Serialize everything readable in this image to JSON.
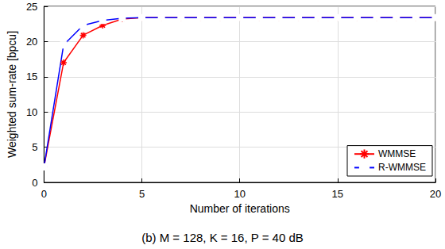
{
  "chart_data": {
    "type": "line",
    "title": "(b) M = 128, K = 16, P = 40 dB",
    "x_label": "Number of iterations",
    "y_label": "Weighted sum-rate [bpcu]",
    "x": [
      0,
      1,
      2,
      3,
      4,
      5,
      6,
      7,
      8,
      9,
      10,
      11,
      12,
      13,
      14,
      15,
      16,
      17,
      18,
      19,
      20
    ],
    "series": [
      {
        "name": "WMMSE",
        "color": "#ff0000",
        "marker": "asterisk",
        "line_style": "solid",
        "values": [
          2.2,
          17.0,
          20.9,
          22.3,
          23.2,
          23.4,
          23.4,
          23.4,
          23.4,
          23.4,
          23.4,
          23.4,
          23.4,
          23.4,
          23.4,
          23.4,
          23.4,
          23.4,
          23.4,
          23.4,
          23.4
        ]
      },
      {
        "name": "R-WMMSE",
        "color": "#0000ff",
        "marker": "square",
        "line_style": "solid",
        "values": [
          2.2,
          19.5,
          22.3,
          23.0,
          23.3,
          23.4,
          23.4,
          23.4,
          23.4,
          23.4,
          23.4,
          23.4,
          23.4,
          23.4,
          23.4,
          23.4,
          23.4,
          23.4,
          23.4,
          23.4,
          23.4
        ]
      }
    ],
    "xlim": [
      0,
      20
    ],
    "xticks": [
      0,
      5,
      10,
      15,
      20
    ],
    "ylim": [
      0,
      25
    ],
    "yticks": [
      0,
      5,
      10,
      15,
      20,
      25
    ],
    "grid": true,
    "legend": "lower right"
  }
}
